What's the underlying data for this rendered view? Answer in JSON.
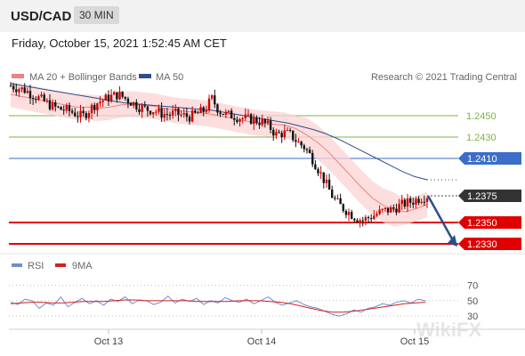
{
  "header": {
    "symbol": "USD/CAD",
    "timeframe": "30 MIN"
  },
  "datetime": "Friday, October 15, 2021 1:52:45 AM CET",
  "legend": {
    "ma20_bb": "MA 20 + Bollinger Bands",
    "ma50": "MA 50",
    "rsi": "RSI",
    "ma9": "9MA"
  },
  "credit": "Research © 2021 Trading Central",
  "watermark": "WikiFX",
  "colors": {
    "ma20": "#f08080",
    "bb_fill": "#fbd3d3",
    "ma50": "#2d4d8c",
    "up": "#cc0000",
    "down": "#111111",
    "green": "#7cb342",
    "blue_level": "#3a6ec9",
    "red_level": "#e00000",
    "rsi": "#6f8fcf",
    "rsi_ma": "#d31f1f"
  },
  "chart_data": [
    {
      "type": "candlestick",
      "x_ticks": [
        "Oct 13",
        "Oct 14",
        "Oct 15"
      ],
      "ylim": [
        1.2325,
        1.2475
      ],
      "levels": [
        {
          "label": "1.2450",
          "value": 1.245,
          "kind": "resistance"
        },
        {
          "label": "1.2430",
          "value": 1.243,
          "kind": "resistance"
        },
        {
          "label": "1.2410",
          "value": 1.241,
          "kind": "pivot"
        },
        {
          "label": "1.2375",
          "value": 1.2375,
          "kind": "last"
        },
        {
          "label": "1.2350",
          "value": 1.235,
          "kind": "support"
        },
        {
          "label": "1.2330",
          "value": 1.233,
          "kind": "support"
        }
      ],
      "close_path": [
        1.2478,
        1.2476,
        1.2474,
        1.247,
        1.2466,
        1.2462,
        1.2458,
        1.2456,
        1.2455,
        1.2452,
        1.2449,
        1.2456,
        1.2462,
        1.2465,
        1.2468,
        1.247,
        1.2466,
        1.2462,
        1.2458,
        1.2456,
        1.2455,
        1.2452,
        1.2451,
        1.2452,
        1.245,
        1.2449,
        1.2452,
        1.2455,
        1.2466,
        1.2455,
        1.2451,
        1.245,
        1.2448,
        1.2447,
        1.2446,
        1.2444,
        1.244,
        1.2432,
        1.2434,
        1.2432,
        1.2425,
        1.242,
        1.241,
        1.2398,
        1.2385,
        1.2372,
        1.2365,
        1.236,
        1.2355,
        1.2352,
        1.2355,
        1.2358,
        1.2361,
        1.2362,
        1.2365,
        1.2368,
        1.237,
        1.2373,
        1.2375
      ],
      "ma20": [
        1.247,
        1.2468,
        1.2466,
        1.2464,
        1.2462,
        1.246,
        1.2458,
        1.2458,
        1.2457,
        1.2458,
        1.246,
        1.2461,
        1.246,
        1.2459,
        1.2457,
        1.2455,
        1.2454,
        1.2453,
        1.2452,
        1.245,
        1.2448,
        1.2446,
        1.2444,
        1.2443,
        1.2442,
        1.2441,
        1.2438,
        1.2432,
        1.2425,
        1.2416,
        1.2405,
        1.2394,
        1.2383,
        1.2373,
        1.2366,
        1.2362,
        1.236,
        1.2363,
        1.2367
      ],
      "ma50": [
        1.248,
        1.2478,
        1.2476,
        1.2474,
        1.2472,
        1.247,
        1.2468,
        1.2466,
        1.2464,
        1.2462,
        1.2461,
        1.246,
        1.2459,
        1.2458,
        1.2457,
        1.2456,
        1.2455,
        1.2453,
        1.2451,
        1.2449,
        1.2447,
        1.2445,
        1.2443,
        1.244,
        1.2437,
        1.2433,
        1.2428,
        1.2422,
        1.2416,
        1.241,
        1.2404,
        1.2398,
        1.2393,
        1.239
      ],
      "forecast": {
        "from": 1.2375,
        "to": 1.233
      }
    },
    {
      "type": "line",
      "title": "RSI",
      "y_ticks": [
        "70",
        "50",
        "30"
      ],
      "ylim": [
        15,
        80
      ],
      "rsi": [
        48,
        45,
        52,
        50,
        40,
        47,
        44,
        55,
        42,
        48,
        53,
        46,
        50,
        44,
        52,
        49,
        55,
        46,
        51,
        50,
        45,
        48,
        56,
        47,
        52,
        49,
        53,
        45,
        50,
        47,
        54,
        50,
        48,
        52,
        46,
        50,
        55,
        48,
        44,
        47,
        50,
        45,
        42,
        40,
        36,
        32,
        30,
        33,
        38,
        35,
        40,
        42,
        46,
        44,
        48,
        50,
        47,
        52,
        50
      ],
      "ma9": [
        46,
        47,
        48,
        48,
        47,
        47,
        48,
        49,
        49,
        49,
        50,
        51,
        51,
        50,
        50,
        50,
        50,
        50,
        49,
        49,
        49,
        49,
        50,
        50,
        50,
        49,
        48,
        46,
        43,
        40,
        37,
        35,
        35,
        36,
        38,
        40,
        42,
        44,
        46,
        47,
        48
      ]
    }
  ]
}
